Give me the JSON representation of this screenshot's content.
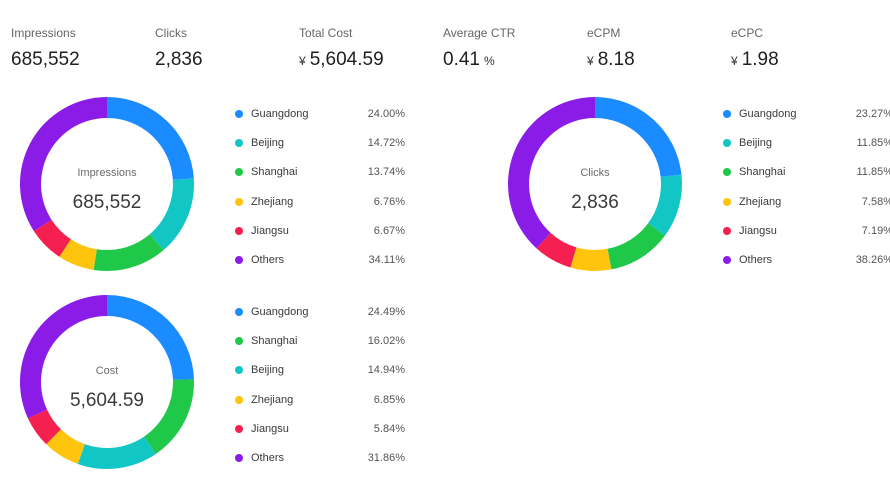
{
  "kpis": [
    {
      "label": "Impressions",
      "prefix": "",
      "value": "685,552",
      "suffix": ""
    },
    {
      "label": "Clicks",
      "prefix": "",
      "value": "2,836",
      "suffix": ""
    },
    {
      "label": "Total Cost",
      "prefix": "¥",
      "value": "5,604.59",
      "suffix": ""
    },
    {
      "label": "Average CTR",
      "prefix": "",
      "value": "0.41",
      "suffix": "%"
    },
    {
      "label": "eCPM",
      "prefix": "¥",
      "value": "8.18",
      "suffix": ""
    },
    {
      "label": "eCPC",
      "prefix": "¥",
      "value": "1.98",
      "suffix": ""
    }
  ],
  "colors": {
    "Guangdong": "#1a8cff",
    "Beijing": "#13c6c6",
    "Shanghai": "#1fc849",
    "Zhejiang": "#ffc40e",
    "Jiangsu": "#f5204f",
    "Others": "#8b1ce8"
  },
  "chart_data": [
    {
      "type": "pie",
      "center_label": "Impressions",
      "center_value": "685,552",
      "slices": [
        {
          "name": "Guangdong",
          "value": 24.0,
          "pct": "24.00%"
        },
        {
          "name": "Beijing",
          "value": 14.72,
          "pct": "14.72%"
        },
        {
          "name": "Shanghai",
          "value": 13.74,
          "pct": "13.74%"
        },
        {
          "name": "Zhejiang",
          "value": 6.76,
          "pct": "6.76%"
        },
        {
          "name": "Jiangsu",
          "value": 6.67,
          "pct": "6.67%"
        },
        {
          "name": "Others",
          "value": 34.11,
          "pct": "34.11%"
        }
      ]
    },
    {
      "type": "pie",
      "center_label": "Clicks",
      "center_value": "2,836",
      "slices": [
        {
          "name": "Guangdong",
          "value": 23.27,
          "pct": "23.27%"
        },
        {
          "name": "Beijing",
          "value": 11.85,
          "pct": "11.85%"
        },
        {
          "name": "Shanghai",
          "value": 11.85,
          "pct": "11.85%"
        },
        {
          "name": "Zhejiang",
          "value": 7.58,
          "pct": "7.58%"
        },
        {
          "name": "Jiangsu",
          "value": 7.19,
          "pct": "7.19%"
        },
        {
          "name": "Others",
          "value": 38.26,
          "pct": "38.26%"
        }
      ]
    },
    {
      "type": "pie",
      "center_label": "Cost",
      "center_value": "5,604.59",
      "slices": [
        {
          "name": "Guangdong",
          "value": 24.49,
          "pct": "24.49%"
        },
        {
          "name": "Shanghai",
          "value": 16.02,
          "pct": "16.02%"
        },
        {
          "name": "Beijing",
          "value": 14.94,
          "pct": "14.94%"
        },
        {
          "name": "Zhejiang",
          "value": 6.85,
          "pct": "6.85%"
        },
        {
          "name": "Jiangsu",
          "value": 5.84,
          "pct": "5.84%"
        },
        {
          "name": "Others",
          "value": 31.86,
          "pct": "31.86%"
        }
      ]
    }
  ]
}
